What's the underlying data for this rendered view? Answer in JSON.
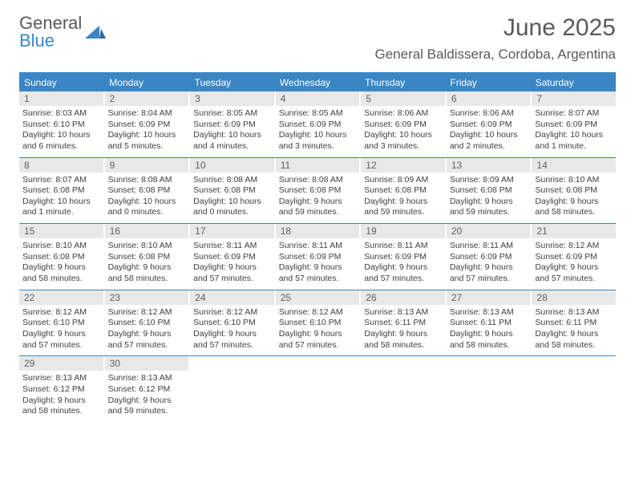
{
  "logo": {
    "top": "General",
    "bottom": "Blue"
  },
  "title": "June 2025",
  "location": "General Baldissera, Cordoba, Argentina",
  "colors": {
    "accent": "#3a85c4",
    "headerText": "#ffffff",
    "dayNumBg": "#e8e8e8",
    "text": "#404040"
  },
  "dayNames": [
    "Sunday",
    "Monday",
    "Tuesday",
    "Wednesday",
    "Thursday",
    "Friday",
    "Saturday"
  ],
  "weeks": [
    [
      {
        "n": "1",
        "sunrise": "8:03 AM",
        "sunset": "6:10 PM",
        "day": "10 hours and 6 minutes."
      },
      {
        "n": "2",
        "sunrise": "8:04 AM",
        "sunset": "6:09 PM",
        "day": "10 hours and 5 minutes."
      },
      {
        "n": "3",
        "sunrise": "8:05 AM",
        "sunset": "6:09 PM",
        "day": "10 hours and 4 minutes."
      },
      {
        "n": "4",
        "sunrise": "8:05 AM",
        "sunset": "6:09 PM",
        "day": "10 hours and 3 minutes."
      },
      {
        "n": "5",
        "sunrise": "8:06 AM",
        "sunset": "6:09 PM",
        "day": "10 hours and 3 minutes."
      },
      {
        "n": "6",
        "sunrise": "8:06 AM",
        "sunset": "6:09 PM",
        "day": "10 hours and 2 minutes."
      },
      {
        "n": "7",
        "sunrise": "8:07 AM",
        "sunset": "6:09 PM",
        "day": "10 hours and 1 minute."
      }
    ],
    [
      {
        "n": "8",
        "sunrise": "8:07 AM",
        "sunset": "6:08 PM",
        "day": "10 hours and 1 minute."
      },
      {
        "n": "9",
        "sunrise": "8:08 AM",
        "sunset": "6:08 PM",
        "day": "10 hours and 0 minutes."
      },
      {
        "n": "10",
        "sunrise": "8:08 AM",
        "sunset": "6:08 PM",
        "day": "10 hours and 0 minutes."
      },
      {
        "n": "11",
        "sunrise": "8:08 AM",
        "sunset": "6:08 PM",
        "day": "9 hours and 59 minutes."
      },
      {
        "n": "12",
        "sunrise": "8:09 AM",
        "sunset": "6:08 PM",
        "day": "9 hours and 59 minutes."
      },
      {
        "n": "13",
        "sunrise": "8:09 AM",
        "sunset": "6:08 PM",
        "day": "9 hours and 59 minutes."
      },
      {
        "n": "14",
        "sunrise": "8:10 AM",
        "sunset": "6:08 PM",
        "day": "9 hours and 58 minutes."
      }
    ],
    [
      {
        "n": "15",
        "sunrise": "8:10 AM",
        "sunset": "6:08 PM",
        "day": "9 hours and 58 minutes."
      },
      {
        "n": "16",
        "sunrise": "8:10 AM",
        "sunset": "6:08 PM",
        "day": "9 hours and 58 minutes."
      },
      {
        "n": "17",
        "sunrise": "8:11 AM",
        "sunset": "6:09 PM",
        "day": "9 hours and 57 minutes."
      },
      {
        "n": "18",
        "sunrise": "8:11 AM",
        "sunset": "6:09 PM",
        "day": "9 hours and 57 minutes."
      },
      {
        "n": "19",
        "sunrise": "8:11 AM",
        "sunset": "6:09 PM",
        "day": "9 hours and 57 minutes."
      },
      {
        "n": "20",
        "sunrise": "8:11 AM",
        "sunset": "6:09 PM",
        "day": "9 hours and 57 minutes."
      },
      {
        "n": "21",
        "sunrise": "8:12 AM",
        "sunset": "6:09 PM",
        "day": "9 hours and 57 minutes."
      }
    ],
    [
      {
        "n": "22",
        "sunrise": "8:12 AM",
        "sunset": "6:10 PM",
        "day": "9 hours and 57 minutes."
      },
      {
        "n": "23",
        "sunrise": "8:12 AM",
        "sunset": "6:10 PM",
        "day": "9 hours and 57 minutes."
      },
      {
        "n": "24",
        "sunrise": "8:12 AM",
        "sunset": "6:10 PM",
        "day": "9 hours and 57 minutes."
      },
      {
        "n": "25",
        "sunrise": "8:12 AM",
        "sunset": "6:10 PM",
        "day": "9 hours and 57 minutes."
      },
      {
        "n": "26",
        "sunrise": "8:13 AM",
        "sunset": "6:11 PM",
        "day": "9 hours and 58 minutes."
      },
      {
        "n": "27",
        "sunrise": "8:13 AM",
        "sunset": "6:11 PM",
        "day": "9 hours and 58 minutes."
      },
      {
        "n": "28",
        "sunrise": "8:13 AM",
        "sunset": "6:11 PM",
        "day": "9 hours and 58 minutes."
      }
    ],
    [
      {
        "n": "29",
        "sunrise": "8:13 AM",
        "sunset": "6:12 PM",
        "day": "9 hours and 58 minutes."
      },
      {
        "n": "30",
        "sunrise": "8:13 AM",
        "sunset": "6:12 PM",
        "day": "9 hours and 59 minutes."
      },
      null,
      null,
      null,
      null,
      null
    ]
  ],
  "labels": {
    "sunrise": "Sunrise: ",
    "sunset": "Sunset: ",
    "daylight": "Daylight: "
  }
}
